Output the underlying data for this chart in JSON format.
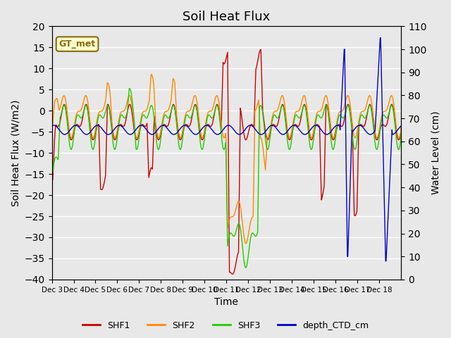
{
  "title": "Soil Heat Flux",
  "ylabel_left": "Soil Heat Flux (W/m2)",
  "ylabel_right": "Water Level (cm)",
  "xlabel": "Time",
  "ylim_left": [
    -40,
    20
  ],
  "ylim_right": [
    0,
    110
  ],
  "bg_color": "#e8e8e8",
  "series_colors": {
    "SHF1": "#cc0000",
    "SHF2": "#ff8800",
    "SHF3": "#22cc00",
    "depth_CTD_cm": "#0000cc"
  },
  "annotation_box": "GT_met",
  "x_tick_labels": [
    "Dec 3",
    "Dec 4",
    "Dec 5",
    "Dec 6",
    "Dec 7",
    "Dec 8",
    "Dec 9",
    "Dec 10",
    "Dec 11",
    "Dec 12",
    "Dec 13",
    "Dec 14",
    "Dec 15",
    "Dec 16",
    "Dec 17",
    "Dec 18"
  ],
  "yticks_left": [
    -40,
    -35,
    -30,
    -25,
    -20,
    -15,
    -10,
    -5,
    0,
    5,
    10,
    15,
    20
  ],
  "yticks_right": [
    0,
    10,
    20,
    30,
    40,
    50,
    60,
    70,
    80,
    90,
    100,
    110
  ]
}
